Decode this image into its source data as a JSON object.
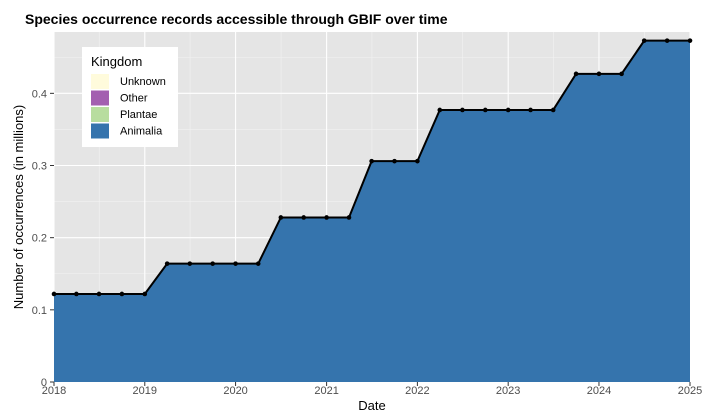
{
  "chart_data": {
    "type": "area",
    "title": "Species occurrence records accessible through GBIF over time",
    "xlabel": "Date",
    "ylabel": "Number of occurrences (in millions)",
    "x_ticks": [
      "2018",
      "2019",
      "2020",
      "2021",
      "2022",
      "2023",
      "2024",
      "2025"
    ],
    "y_ticks": [
      "0",
      "0.1",
      "0.2",
      "0.3",
      "0.4"
    ],
    "xlim": [
      "2018-01-01",
      "2025-01-01"
    ],
    "ylim": [
      0,
      0.485
    ],
    "grid": true,
    "legend": {
      "title": "Kingdom",
      "placement": "top-left",
      "entries": [
        {
          "label": "Unknown",
          "color": "#fffbdc"
        },
        {
          "label": "Other",
          "color": "#a35fb0"
        },
        {
          "label": "Plantae",
          "color": "#b8dd9f"
        },
        {
          "label": "Animalia",
          "color": "#3574ad"
        }
      ]
    },
    "series": [
      {
        "name": "Animalia",
        "color": "#3574ad",
        "points": [
          [
            "2018-01-01",
            0.122
          ],
          [
            "2018-04-01",
            0.122
          ],
          [
            "2018-07-01",
            0.122
          ],
          [
            "2018-10-01",
            0.122
          ],
          [
            "2019-01-01",
            0.122
          ],
          [
            "2019-04-01",
            0.164
          ],
          [
            "2019-07-01",
            0.164
          ],
          [
            "2019-10-01",
            0.164
          ],
          [
            "2020-01-01",
            0.164
          ],
          [
            "2020-04-01",
            0.164
          ],
          [
            "2020-07-01",
            0.228
          ],
          [
            "2020-10-01",
            0.228
          ],
          [
            "2021-01-01",
            0.228
          ],
          [
            "2021-04-01",
            0.228
          ],
          [
            "2021-07-01",
            0.306
          ],
          [
            "2021-10-01",
            0.306
          ],
          [
            "2022-01-01",
            0.306
          ],
          [
            "2022-04-01",
            0.377
          ],
          [
            "2022-07-01",
            0.377
          ],
          [
            "2022-10-01",
            0.377
          ],
          [
            "2023-01-01",
            0.377
          ],
          [
            "2023-04-01",
            0.377
          ],
          [
            "2023-07-01",
            0.377
          ],
          [
            "2023-10-01",
            0.427
          ],
          [
            "2024-01-01",
            0.427
          ],
          [
            "2024-04-01",
            0.427
          ],
          [
            "2024-07-01",
            0.473
          ],
          [
            "2024-10-01",
            0.473
          ],
          [
            "2025-01-01",
            0.473
          ]
        ]
      }
    ]
  }
}
